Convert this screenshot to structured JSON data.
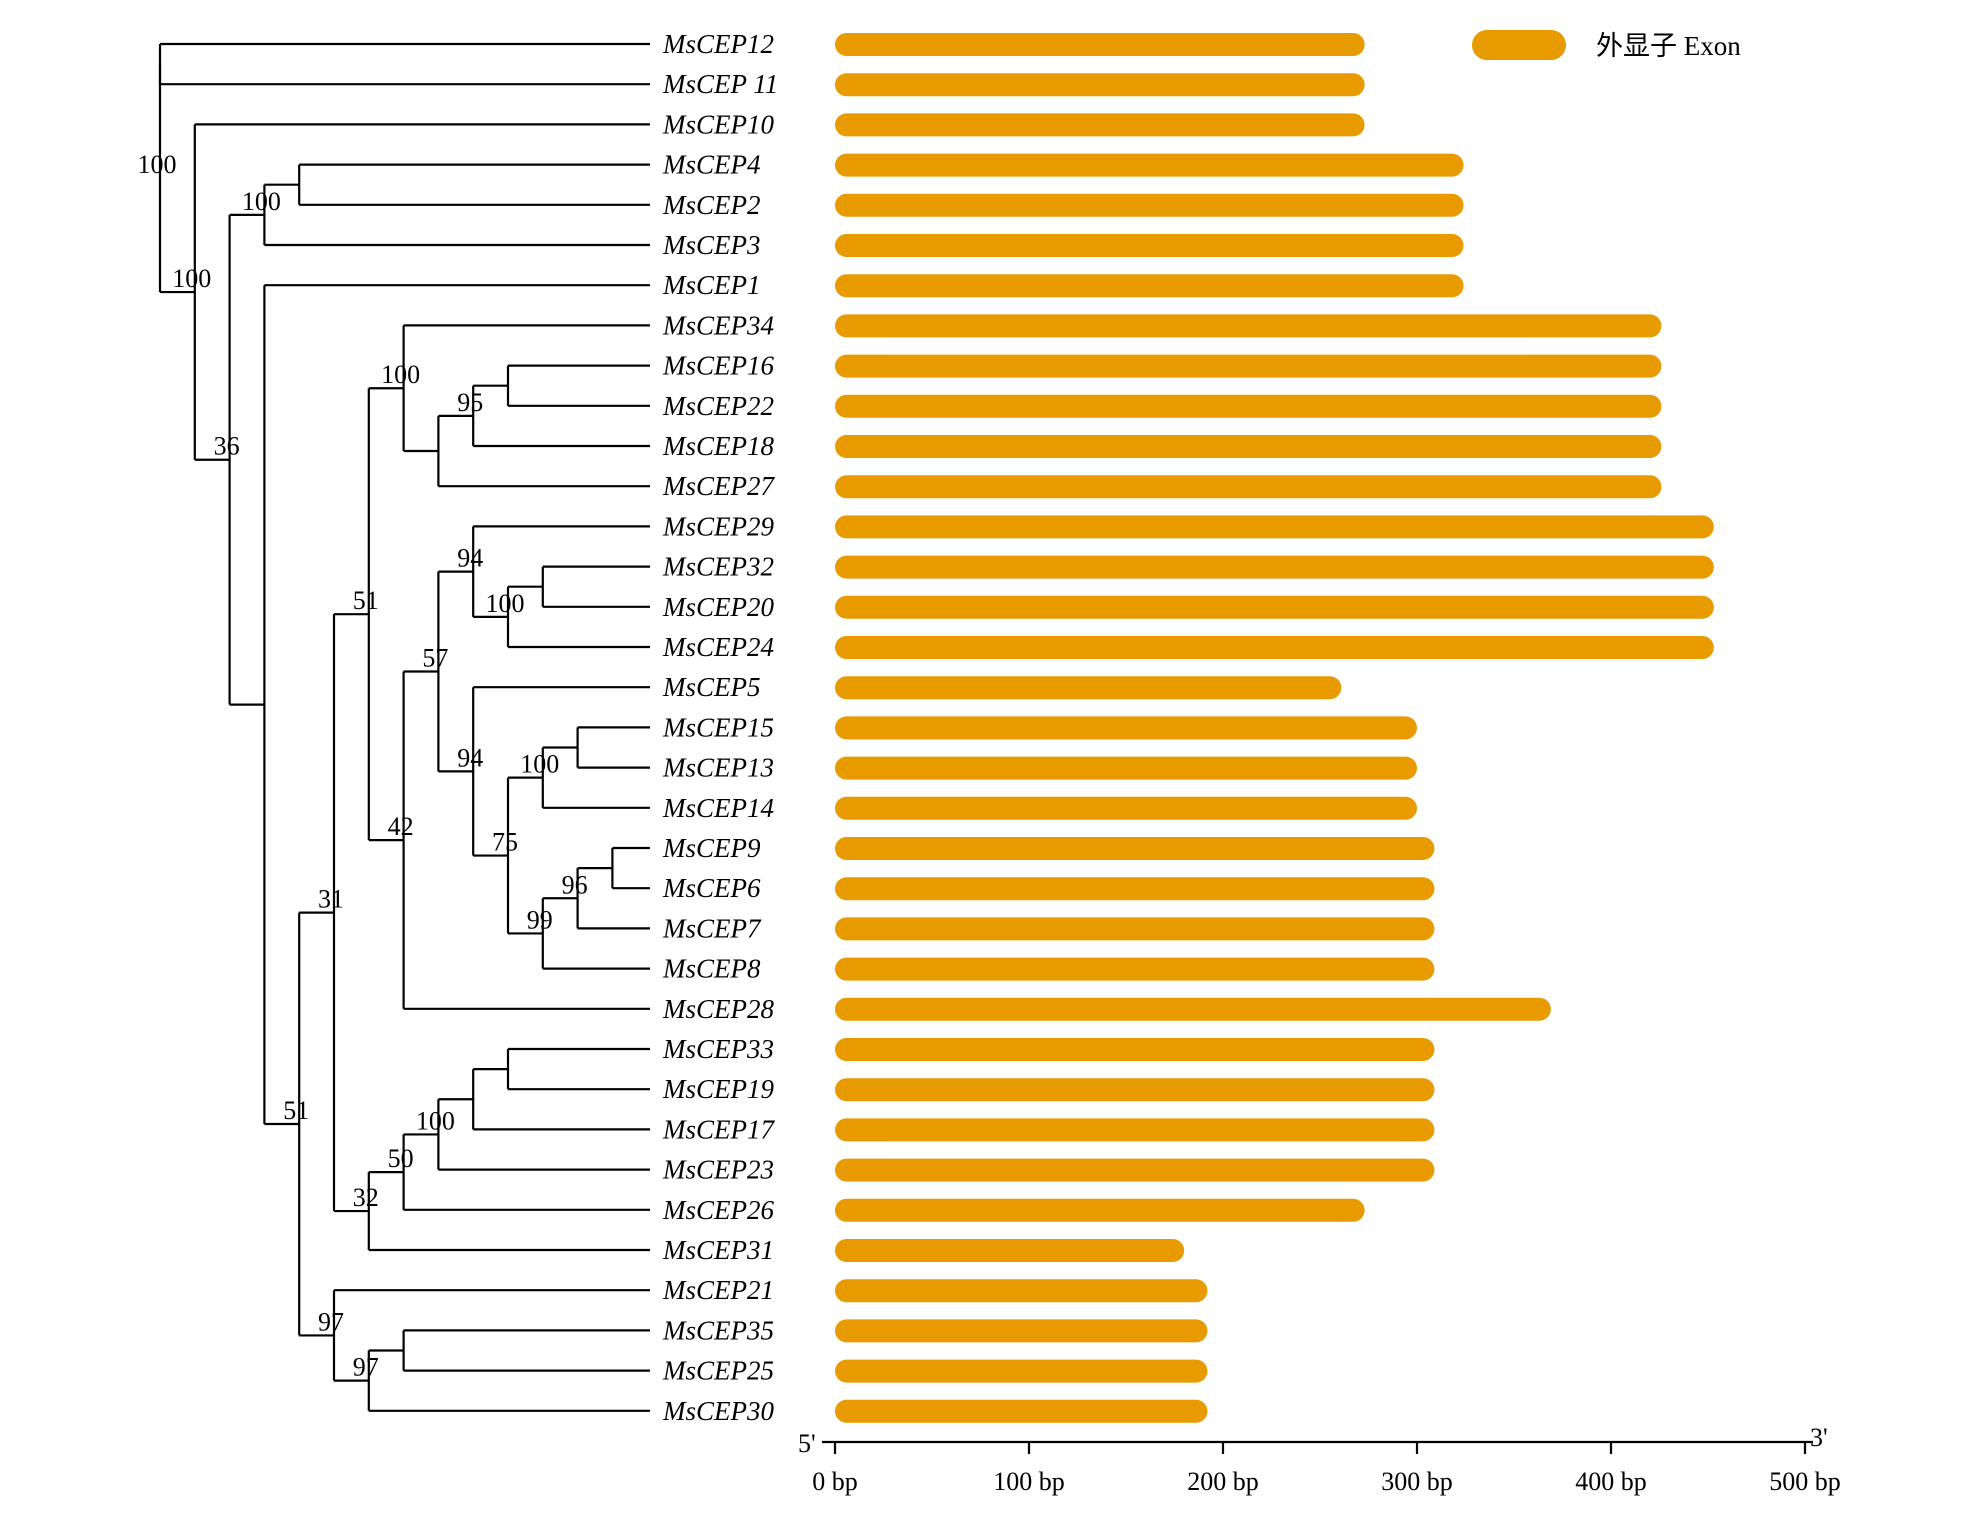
{
  "legend": {
    "label": "外显子 Exon",
    "color": "#E89B00"
  },
  "axis": {
    "start_mark": "5'",
    "end_mark": "3'",
    "ticks": [
      "0 bp",
      "100 bp",
      "200 bp",
      "300 bp",
      "400 bp",
      "500 bp"
    ],
    "range_bp": [
      0,
      500
    ]
  },
  "chart_data": {
    "type": "bar",
    "orientation": "horizontal",
    "categories": [
      "MsCEP12",
      "MsCEP 11",
      "MsCEP10",
      "MsCEP4",
      "MsCEP2",
      "MsCEP3",
      "MsCEP1",
      "MsCEP34",
      "MsCEP16",
      "MsCEP22",
      "MsCEP18",
      "MsCEP27",
      "MsCEP29",
      "MsCEP32",
      "MsCEP20",
      "MsCEP24",
      "MsCEP5",
      "MsCEP15",
      "MsCEP13",
      "MsCEP14",
      "MsCEP9",
      "MsCEP6",
      "MsCEP7",
      "MsCEP8",
      "MsCEP28",
      "MsCEP33",
      "MsCEP19",
      "MsCEP17",
      "MsCEP23",
      "MsCEP26",
      "MsCEP31",
      "MsCEP21",
      "MsCEP35",
      "MsCEP25",
      "MsCEP30"
    ],
    "series": [
      {
        "name": "外显子 Exon",
        "values": [
          273,
          273,
          273,
          324,
          324,
          324,
          324,
          426,
          426,
          426,
          426,
          426,
          453,
          453,
          453,
          453,
          261,
          300,
          300,
          300,
          309,
          309,
          309,
          309,
          369,
          309,
          309,
          309,
          309,
          273,
          180,
          192,
          192,
          192,
          192
        ]
      }
    ],
    "xlim": [
      0,
      500
    ]
  },
  "tree": {
    "nodes": [
      {
        "id": "n_12_11",
        "depth": 0,
        "children": [
          "L0",
          "L1"
        ]
      },
      {
        "id": "n_4_2",
        "depth": 4,
        "children": [
          "L3",
          "L4"
        ]
      },
      {
        "id": "n_42_3",
        "depth": 3,
        "children": [
          "n_4_2",
          "L5"
        ],
        "support": "100"
      },
      {
        "id": "n_16_22",
        "depth": 10,
        "children": [
          "L8",
          "L9"
        ]
      },
      {
        "id": "n_16_18",
        "depth": 9,
        "children": [
          "n_16_22",
          "L10"
        ],
        "support": "95"
      },
      {
        "id": "n_16_27",
        "depth": 8,
        "children": [
          "n_16_18",
          "L11"
        ]
      },
      {
        "id": "n_34",
        "depth": 7,
        "children": [
          "L7",
          "n_16_27"
        ],
        "support": "100"
      },
      {
        "id": "n_32_20",
        "depth": 11,
        "children": [
          "L13",
          "L14"
        ]
      },
      {
        "id": "n_32_24",
        "depth": 10,
        "children": [
          "n_32_20",
          "L15"
        ],
        "support": "100"
      },
      {
        "id": "n_29",
        "depth": 9,
        "children": [
          "L12",
          "n_32_24"
        ],
        "support": "94"
      },
      {
        "id": "n_15_13",
        "depth": 12,
        "children": [
          "L17",
          "L18"
        ]
      },
      {
        "id": "n_15_14",
        "depth": 11,
        "children": [
          "n_15_13",
          "L19"
        ],
        "support": "100"
      },
      {
        "id": "n_9_6",
        "depth": 13,
        "children": [
          "L20",
          "L21"
        ]
      },
      {
        "id": "n_9_7",
        "depth": 12,
        "children": [
          "n_9_6",
          "L22"
        ],
        "support": "96"
      },
      {
        "id": "n_9_8",
        "depth": 11,
        "children": [
          "n_9_7",
          "L23"
        ],
        "support": "99"
      },
      {
        "id": "n_15_9",
        "depth": 10,
        "children": [
          "n_15_14",
          "n_9_8"
        ],
        "support": "75"
      },
      {
        "id": "n_5",
        "depth": 9,
        "children": [
          "L16",
          "n_15_9"
        ],
        "support": "94"
      },
      {
        "id": "n_29_5",
        "depth": 8,
        "children": [
          "n_29",
          "n_5"
        ],
        "support": "57"
      },
      {
        "id": "n_29_28",
        "depth": 7,
        "children": [
          "n_29_5",
          "L24"
        ],
        "support": "42"
      },
      {
        "id": "n_34_29",
        "depth": 6,
        "children": [
          "n_34",
          "n_29_28"
        ],
        "support": "51"
      },
      {
        "id": "n_33_19",
        "depth": 10,
        "children": [
          "L25",
          "L26"
        ]
      },
      {
        "id": "n_33_17",
        "depth": 9,
        "children": [
          "n_33_19",
          "L27"
        ]
      },
      {
        "id": "n_33_23",
        "depth": 8,
        "children": [
          "n_33_17",
          "L28"
        ],
        "support": "100"
      },
      {
        "id": "n_33_26",
        "depth": 7,
        "children": [
          "n_33_23",
          "L29"
        ],
        "support": "50"
      },
      {
        "id": "n_33_31",
        "depth": 6,
        "children": [
          "n_33_26",
          "L30"
        ],
        "support": "32"
      },
      {
        "id": "n_big",
        "depth": 5,
        "children": [
          "n_34_29",
          "n_33_31"
        ],
        "support": "31"
      },
      {
        "id": "n_35_25",
        "depth": 7,
        "children": [
          "L32",
          "L33"
        ]
      },
      {
        "id": "n_35_30",
        "depth": 6,
        "children": [
          "n_35_25",
          "L34"
        ],
        "support": "97"
      },
      {
        "id": "n_21",
        "depth": 5,
        "children": [
          "L31",
          "n_35_30"
        ],
        "support": "97"
      },
      {
        "id": "n_31_21",
        "depth": 4,
        "children": [
          "n_big",
          "n_21"
        ],
        "support": "51"
      },
      {
        "id": "n_1",
        "depth": 3,
        "children": [
          "L6",
          "n_31_21"
        ]
      },
      {
        "id": "n_4_1",
        "depth": 2,
        "children": [
          "n_42_3",
          "n_1"
        ],
        "support": "36"
      },
      {
        "id": "n_10",
        "depth": 1,
        "children": [
          "L2",
          "n_4_1"
        ],
        "support": "100"
      },
      {
        "id": "root",
        "depth": 0,
        "children": [
          "n_12_11",
          "n_10"
        ],
        "support": "100"
      }
    ]
  }
}
